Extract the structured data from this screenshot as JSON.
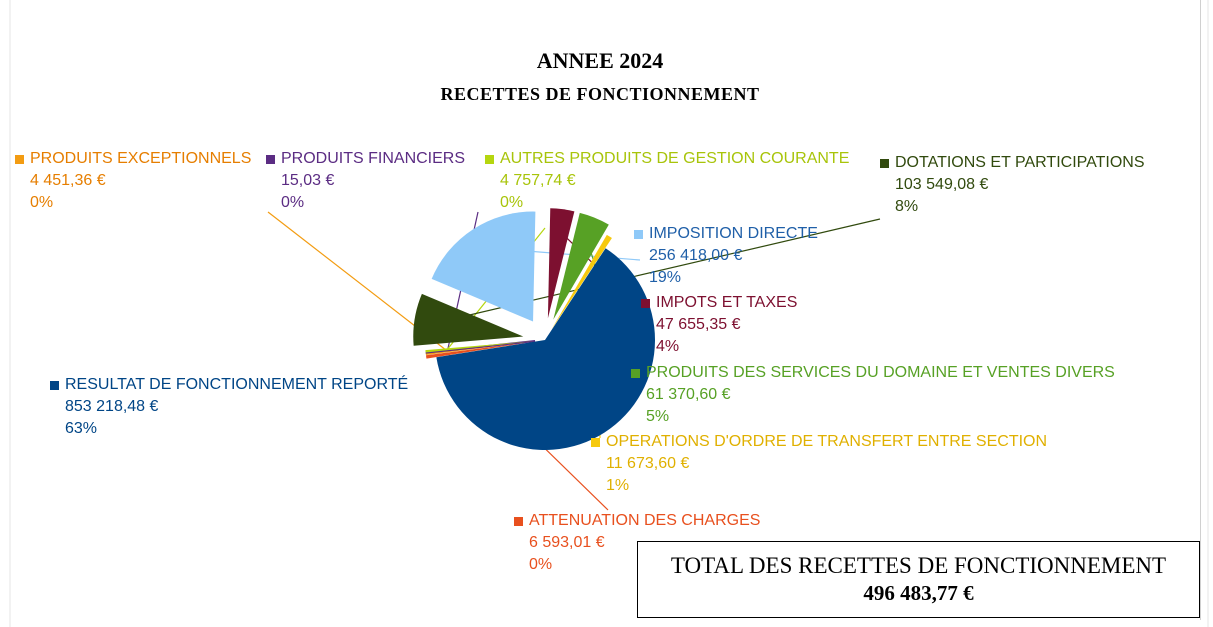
{
  "title": "ANNEE 2024",
  "subtitle": "RECETTES DE FONCTIONNEMENT",
  "total": {
    "label": "TOTAL DES RECETTES DE FONCTIONNEMENT",
    "value": "496 483,77 €"
  },
  "chart_data": {
    "type": "pie",
    "title": "ANNEE 2024",
    "subtitle": "RECETTES DE FONCTIONNEMENT",
    "slices": [
      {
        "name": "ATTENUATION DES CHARGES",
        "amount": "6 593,01 €",
        "percent_label": "0%",
        "value": 6593.01,
        "color": "#e8501e"
      },
      {
        "name": "PRODUITS EXCEPTIONNELS",
        "amount": "4 451,36 €",
        "percent_label": "0%",
        "value": 4451.36,
        "color": "#f39c12"
      },
      {
        "name": "PRODUITS FINANCIERS",
        "amount": "15,03 €",
        "percent_label": "0%",
        "value": 15.03,
        "color": "#5b2c83"
      },
      {
        "name": "AUTRES PRODUITS DE GESTION COURANTE",
        "amount": "4 757,74 €",
        "percent_label": "0%",
        "value": 4757.74,
        "color": "#b5d60f"
      },
      {
        "name": "DOTATIONS ET PARTICIPATIONS",
        "amount": "103 549,08 €",
        "percent_label": "8%",
        "value": 103549.08,
        "color": "#314a0e"
      },
      {
        "name": "IMPOSITION DIRECTE",
        "amount": "256 418,00 €",
        "percent_label": "19%",
        "value": 256418.0,
        "color": "#8fc9f8"
      },
      {
        "name": "IMPOTS ET TAXES",
        "amount": "47 655,35 €",
        "percent_label": "4%",
        "value": 47655.35,
        "color": "#7d1030"
      },
      {
        "name": "PRODUITS DES SERVICES DU DOMAINE ET VENTES DIVERS",
        "amount": "61 370,60 €",
        "percent_label": "5%",
        "value": 61370.6,
        "color": "#57a125"
      },
      {
        "name": "OPERATIONS D'ORDRE DE TRANSFERT ENTRE SECTION",
        "amount": "11 673,60 €",
        "percent_label": "1%",
        "value": 11673.6,
        "color": "#f6c90e"
      },
      {
        "name": "RESULTAT DE FONCTIONNEMENT REPORTÉ",
        "amount": "853 218,48 €",
        "percent_label": "63%",
        "value": 853218.48,
        "color": "#004586"
      }
    ]
  }
}
